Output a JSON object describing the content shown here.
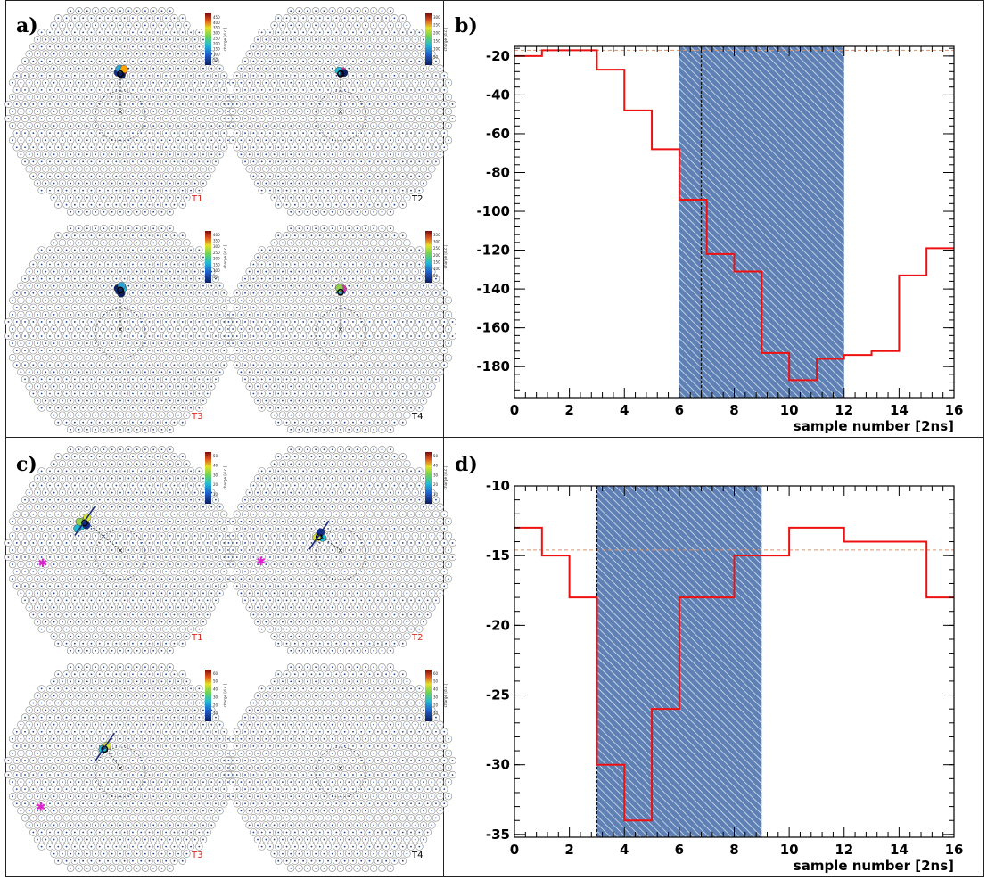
{
  "panel_labels": [
    "a)",
    "b)",
    "c)",
    "d)"
  ],
  "camera_colors": {
    "red": "#e0271f",
    "black": "#000000"
  },
  "charge_scale_label": "charge [d.c.]",
  "chart_data": [
    {
      "panel": "a)",
      "type": "heatmap",
      "description_free": true,
      "telescopes": [
        {
          "label": "T1",
          "label_color": "#e0271f",
          "colorbar_ticks": [
            50,
            100,
            150,
            200,
            250,
            300,
            350,
            400,
            450
          ],
          "hits": [
            [
              0,
              -9.5,
              "#22b9d6"
            ],
            [
              0.6,
              -9.6,
              "#db2eb0"
            ],
            [
              -0.6,
              -9.4,
              "#102e8c"
            ],
            [
              0.3,
              -8.8,
              "#0a1d5e"
            ],
            [
              -0.2,
              -10.3,
              "#2fa3d5"
            ],
            [
              0.9,
              -10.2,
              "#ffa500"
            ]
          ]
        },
        {
          "label": "T2",
          "label_color": "#000000",
          "colorbar_ticks": [
            50,
            100,
            150,
            200,
            250,
            300
          ],
          "hits": [
            [
              0,
              -9.5,
              "#102e8c"
            ],
            [
              0.5,
              -9.7,
              "#db2eb0"
            ],
            [
              -0.4,
              -9.8,
              "#22b9d6"
            ],
            [
              0.8,
              -9.3,
              "#0a1d5e"
            ]
          ]
        },
        {
          "label": "T3",
          "label_color": "#e0271f",
          "colorbar_ticks": [
            50,
            100,
            150,
            200,
            250,
            300,
            350,
            400
          ],
          "hits": [
            [
              0,
              -9.8,
              "#102e8c"
            ],
            [
              0.6,
              -9.8,
              "#22b9d6"
            ],
            [
              -0.6,
              -9.8,
              "#0a1d5e"
            ],
            [
              0.3,
              -10.4,
              "#2fa3d5"
            ],
            [
              -0.3,
              -9.2,
              "#102e8c"
            ],
            [
              0.2,
              -8.6,
              "#0a1d5e"
            ]
          ]
        },
        {
          "label": "T4",
          "label_color": "#000000",
          "colorbar_ticks": [
            50,
            100,
            150,
            200,
            250,
            300,
            350
          ],
          "hits": [
            [
              0,
              -9.3,
              "#2fa3d5"
            ],
            [
              0.5,
              -9.7,
              "#db2eb0"
            ],
            [
              -0.3,
              -9.9,
              "#8fd14f"
            ]
          ]
        }
      ]
    },
    {
      "panel": "b)",
      "type": "line",
      "xlabel": "sample number [2ns]",
      "ylabel": "",
      "xlim": [
        0,
        16
      ],
      "ylim": [
        -196,
        -15
      ],
      "x_ticks": [
        0,
        2,
        4,
        6,
        8,
        10,
        12,
        14,
        16
      ],
      "y_ticks": [
        -20,
        -40,
        -60,
        -80,
        -100,
        -120,
        -140,
        -160,
        -180
      ],
      "step_values": [
        -20,
        -17,
        -17,
        -27,
        -48,
        -68,
        -94,
        -122,
        -131,
        -173,
        -187,
        -176,
        -174,
        -172,
        -133,
        -119
      ],
      "baseline": -17,
      "integration_window": [
        6,
        12
      ],
      "peak_time": 6.8
    },
    {
      "panel": "c)",
      "type": "heatmap",
      "telescopes": [
        {
          "label": "T1",
          "label_color": "#e0271f",
          "colorbar_ticks": [
            10,
            20,
            30,
            40,
            50
          ],
          "hits": [
            [
              -8.6,
              -7.0,
              "#8fd14f"
            ],
            [
              -9.4,
              -5.8,
              "#22b9d6"
            ],
            [
              -8.0,
              -7.9,
              "#d8e53a"
            ],
            [
              -9.8,
              -6.8,
              "#8fd14f"
            ],
            [
              -8.2,
              -6.0,
              "#102e8c"
            ],
            [
              -10.4,
              -5.2,
              "#22b9d6"
            ]
          ],
          "star": [
            -11.7,
            -1.2
          ]
        },
        {
          "label": "T2",
          "label_color": "#e0271f",
          "colorbar_ticks": [
            10,
            20,
            30,
            40,
            50
          ],
          "hits": [
            [
              -5.2,
              -3.6,
              "#8fd14f"
            ],
            [
              -4.4,
              -3.0,
              "#22b9d6"
            ],
            [
              -5.8,
              -3.0,
              "#d8e53a"
            ],
            [
              -4.8,
              -4.3,
              "#102e8c"
            ]
          ],
          "star": [
            -12.0,
            -1.4
          ]
        },
        {
          "label": "T3",
          "label_color": "#e0271f",
          "colorbar_ticks": [
            10,
            20,
            30,
            40,
            50,
            60
          ],
          "hits": [
            [
              -3.8,
              -4.9,
              "#8fd14f"
            ],
            [
              -3.2,
              -5.3,
              "#d8e53a"
            ],
            [
              -4.3,
              -4.4,
              "#22b9d6"
            ]
          ],
          "star": [
            -12.0,
            2.0
          ]
        },
        {
          "label": "T4",
          "label_color": "#000000",
          "colorbar_ticks": [
            10,
            20,
            30,
            40,
            50,
            60
          ],
          "hits": []
        }
      ]
    },
    {
      "panel": "d)",
      "type": "line",
      "xlabel": "sample number [2ns]",
      "ylabel": "",
      "xlim": [
        0,
        16
      ],
      "ylim": [
        -35.2,
        -10
      ],
      "x_ticks": [
        0,
        2,
        4,
        6,
        8,
        10,
        12,
        14,
        16
      ],
      "y_ticks": [
        -10,
        -15,
        -20,
        -25,
        -30,
        -35
      ],
      "step_values": [
        -13,
        -15,
        -18,
        -30,
        -34,
        -26,
        -18,
        -18,
        -15,
        -15,
        -13,
        -13,
        -14,
        -14,
        -14,
        -18
      ],
      "baseline": -14.6,
      "integration_window": [
        3,
        9
      ],
      "peak_time": 3
    }
  ]
}
